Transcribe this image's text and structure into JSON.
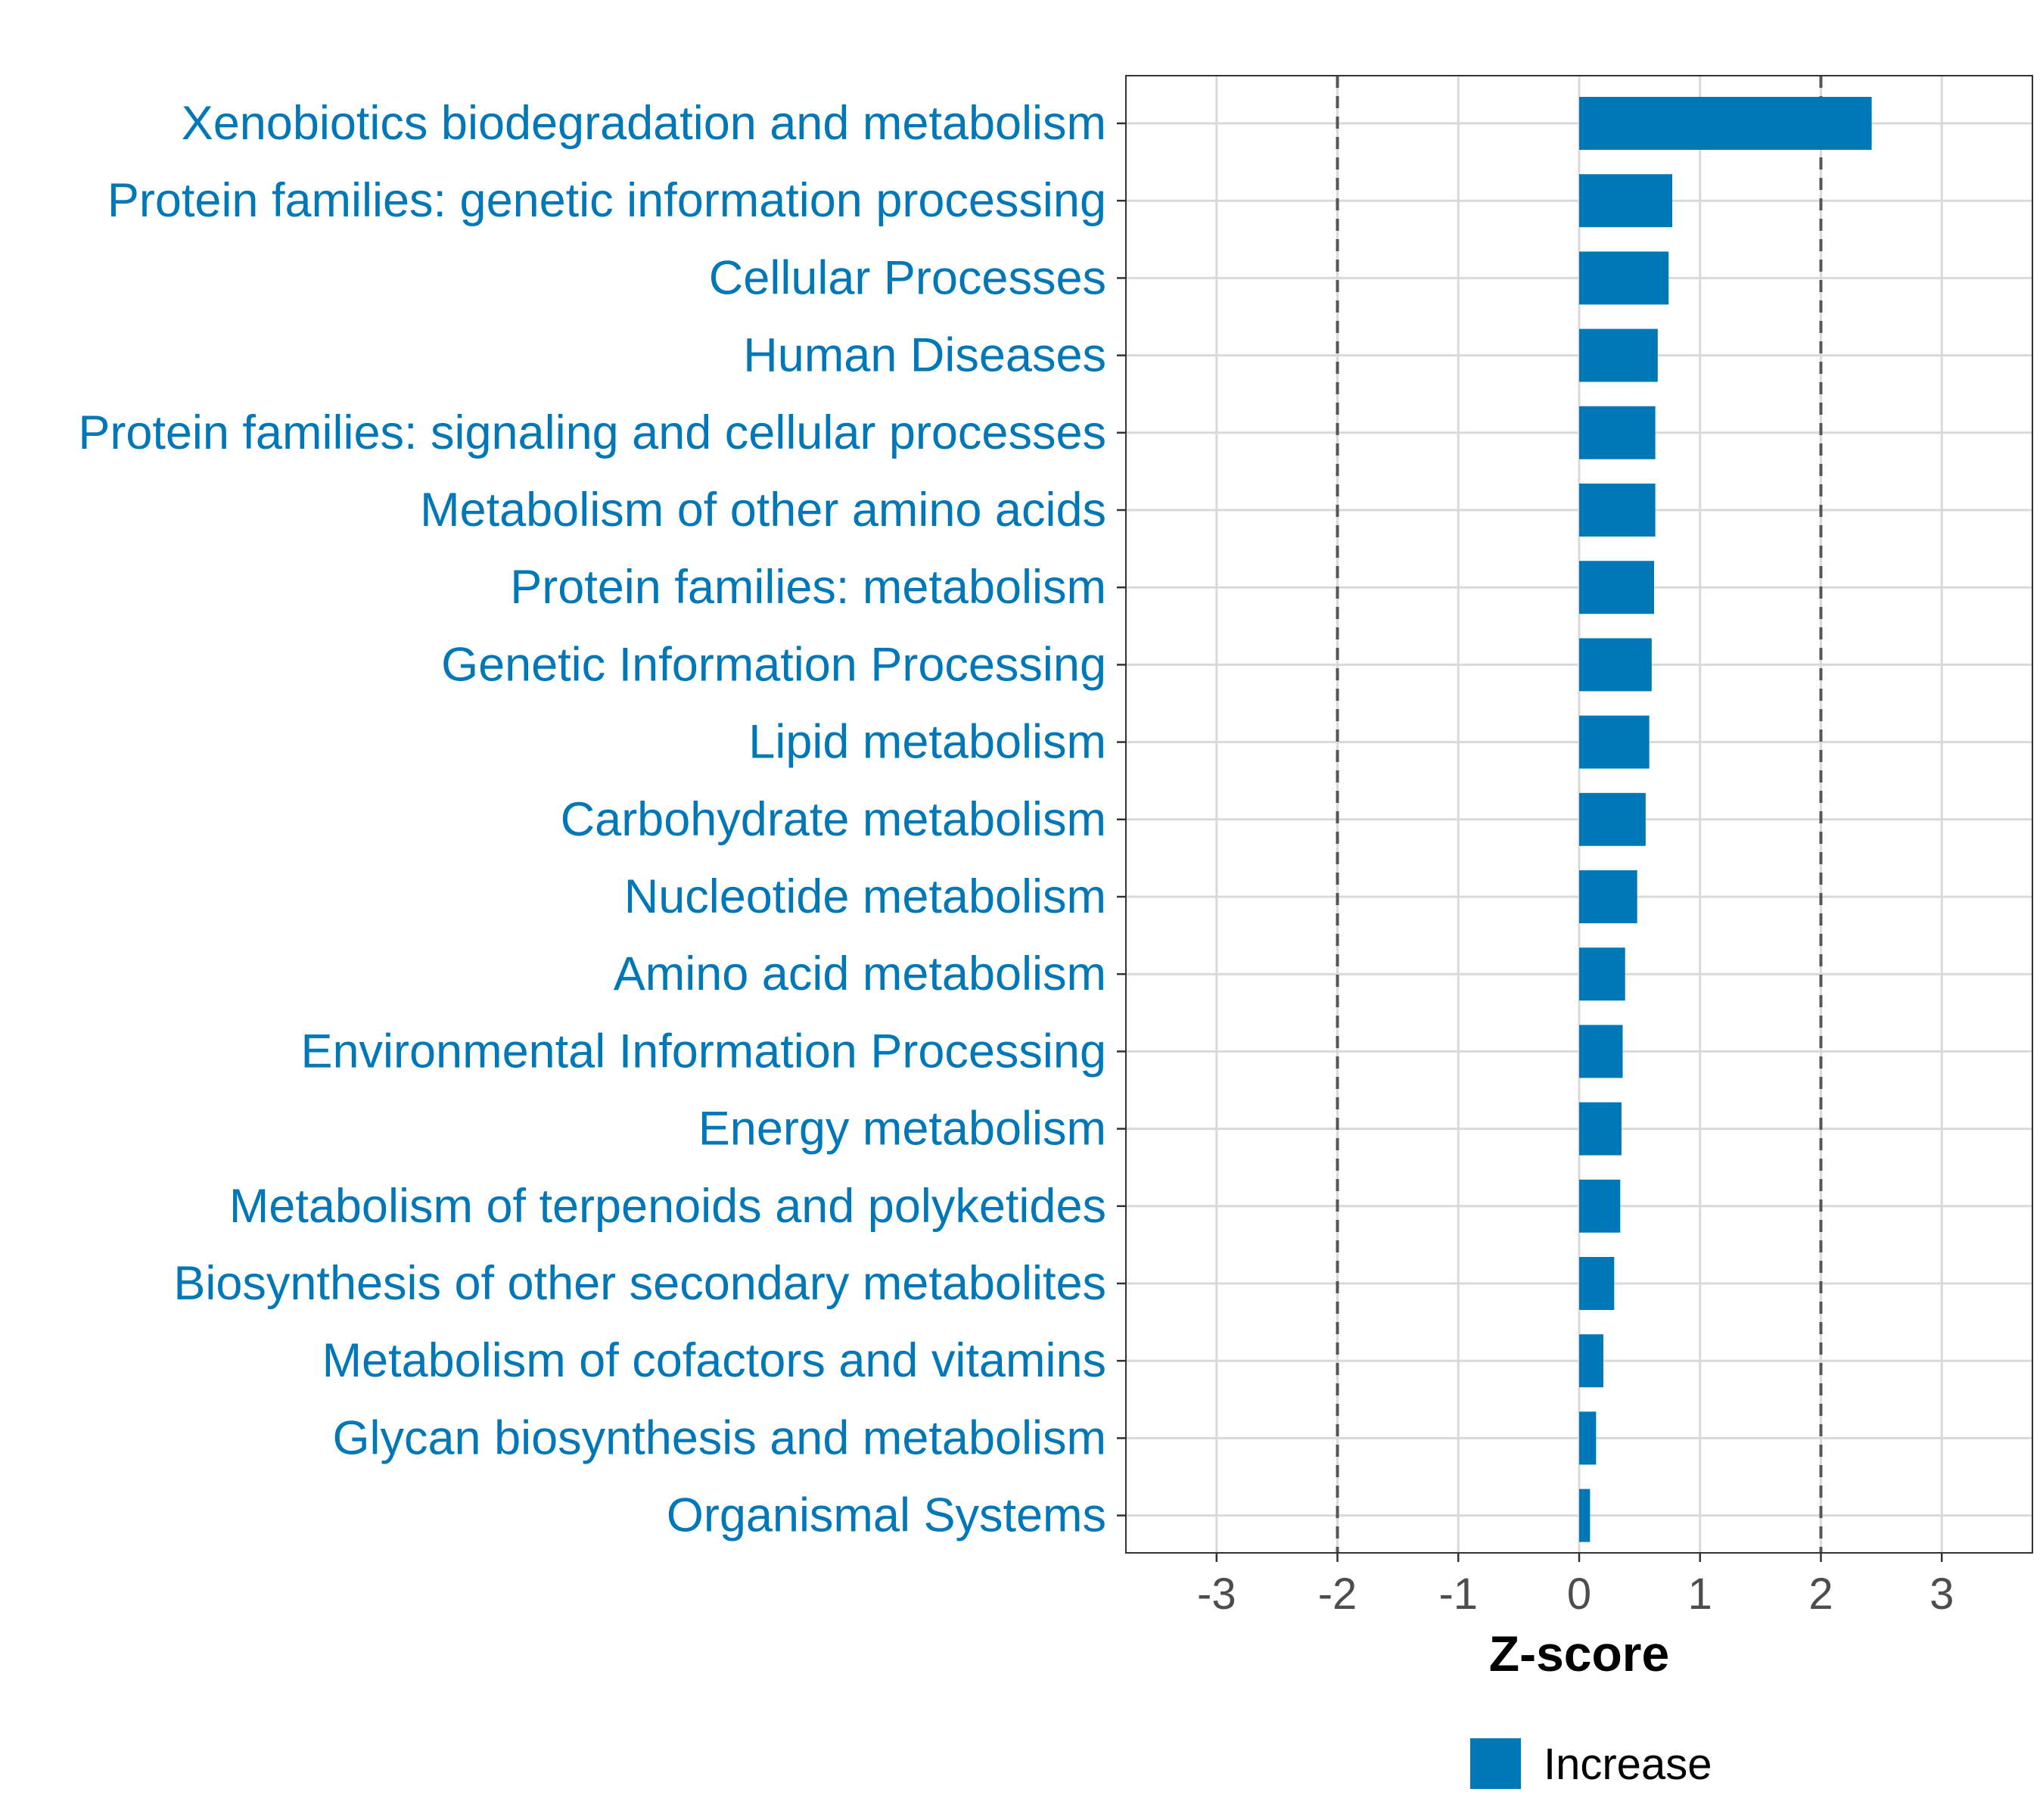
{
  "chart_data": {
    "type": "bar",
    "orientation": "horizontal",
    "title": "",
    "xlabel": "Z-score",
    "ylabel": "",
    "xlim": [
      -3.75,
      3.75
    ],
    "xticks": [
      -3,
      -2,
      -1,
      0,
      1,
      2,
      3
    ],
    "xtick_labels": [
      "-3",
      "-2",
      "-1",
      "0",
      "1",
      "2",
      "3"
    ],
    "reference_lines": [
      -2,
      2
    ],
    "grid": true,
    "categories": [
      "Xenobiotics biodegradation and metabolism",
      "Protein families: genetic information processing",
      "Cellular Processes",
      "Human Diseases",
      "Protein families: signaling and cellular processes",
      "Metabolism of other amino acids",
      "Protein families: metabolism",
      "Genetic Information Processing",
      "Lipid metabolism",
      "Carbohydrate metabolism",
      "Nucleotide metabolism",
      "Amino acid metabolism",
      "Environmental Information Processing",
      "Energy metabolism",
      "Metabolism of terpenoids and polyketides",
      "Biosynthesis of other secondary metabolites",
      "Metabolism of cofactors and vitamins",
      "Glycan biosynthesis and metabolism",
      "Organismal Systems"
    ],
    "series": [
      {
        "name": "Increase",
        "values": [
          2.42,
          0.77,
          0.74,
          0.65,
          0.63,
          0.63,
          0.62,
          0.6,
          0.58,
          0.55,
          0.48,
          0.38,
          0.36,
          0.35,
          0.34,
          0.29,
          0.2,
          0.14,
          0.09
        ]
      }
    ],
    "legend": {
      "position": "bottom",
      "entries": [
        "Increase"
      ]
    },
    "colors": {
      "bar": "#0077b6",
      "label": "#0077b6",
      "grid": "#d9d9d9",
      "refline": "#555555",
      "frame": "#333333"
    }
  }
}
